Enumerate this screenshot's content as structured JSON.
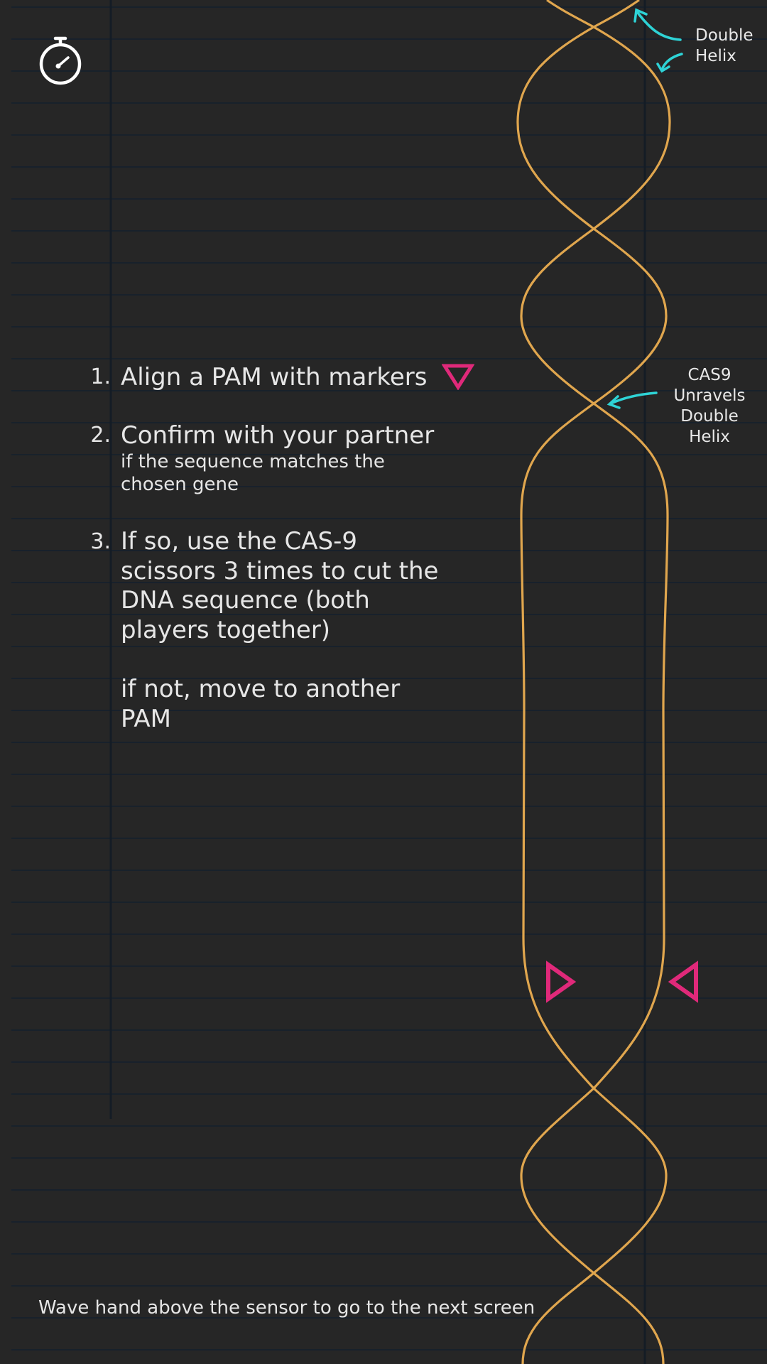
{
  "timer": {
    "icon": "stopwatch-icon"
  },
  "instructions": {
    "step1": {
      "number": "1.",
      "text": "Align a PAM with markers",
      "marker_icon": "pink-down-triangle-icon"
    },
    "step2": {
      "number": "2.",
      "text": "Confirm with your partner",
      "detail_line1": "if the sequence matches the",
      "detail_line2": "chosen gene"
    },
    "step3": {
      "number": "3.",
      "line1": "If so, use the CAS-9",
      "line2": "scissors 3 times to cut the",
      "line3": "DNA sequence (both",
      "line4": "players together)",
      "alt_line1": "if not, move to another",
      "alt_line2": "PAM"
    }
  },
  "annotations": {
    "double_helix": {
      "line1": "Double",
      "line2": "Helix"
    },
    "cas9": {
      "line1": "CAS9",
      "line2": "Unravels",
      "line3": "Double Helix"
    }
  },
  "footer": {
    "text": "Wave hand above the sensor to go to the next screen"
  },
  "colors": {
    "background": "#262626",
    "helix": "#e0a64e",
    "marker": "#e0297a",
    "annotation_arrow": "#2ed3d6",
    "paper_line": "#18212b"
  }
}
